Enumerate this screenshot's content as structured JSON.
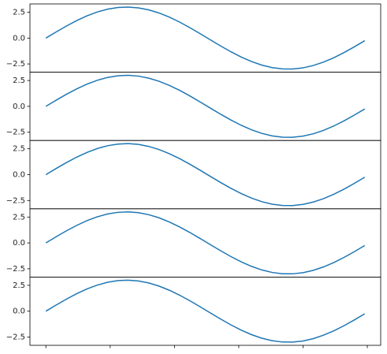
{
  "chart_data": [
    {
      "type": "line",
      "x": [
        0,
        0.2,
        0.4,
        0.6,
        0.8,
        1.0,
        1.2,
        1.4,
        1.6,
        1.8,
        2.0,
        2.2,
        2.4,
        2.6,
        2.8,
        3.0,
        3.2,
        3.4,
        3.6,
        3.8,
        4.0,
        4.2,
        4.4,
        4.6,
        4.8,
        5.0,
        5.2,
        5.4,
        5.6,
        5.8,
        6.0,
        6.2
      ],
      "values": [
        0,
        0.596,
        1.168,
        1.694,
        2.152,
        2.524,
        2.796,
        2.956,
        2.999,
        2.922,
        2.728,
        2.426,
        2.026,
        1.547,
        1.005,
        0.423,
        -0.175,
        -0.767,
        -1.328,
        -1.836,
        -2.27,
        -2.615,
        -2.855,
        -2.981,
        -2.988,
        -2.877,
        -2.65,
        -2.318,
        -1.894,
        -1.394,
        -0.838,
        -0.249
      ],
      "color": "#1f77b4",
      "xlim": [
        -0.31,
        6.51
      ],
      "ylim": [
        -3.3,
        3.3
      ],
      "yticks": [
        {
          "value": -2.5,
          "label": "−2.5"
        },
        {
          "value": 0,
          "label": "0.0"
        },
        2.5
      ]
    },
    {
      "type": "line",
      "x": [
        0,
        0.2,
        0.4,
        0.6,
        0.8,
        1.0,
        1.2,
        1.4,
        1.6,
        1.8,
        2.0,
        2.2,
        2.4,
        2.6,
        2.8,
        3.0,
        3.2,
        3.4,
        3.6,
        3.8,
        4.0,
        4.2,
        4.4,
        4.6,
        4.8,
        5.0,
        5.2,
        5.4,
        5.6,
        5.8,
        6.0,
        6.2
      ],
      "values": [
        0,
        0.596,
        1.168,
        1.694,
        2.152,
        2.524,
        2.796,
        2.956,
        2.999,
        2.922,
        2.728,
        2.426,
        2.026,
        1.547,
        1.005,
        0.423,
        -0.175,
        -0.767,
        -1.328,
        -1.836,
        -2.27,
        -2.615,
        -2.855,
        -2.981,
        -2.988,
        -2.877,
        -2.65,
        -2.318,
        -1.894,
        -1.394,
        -0.838,
        -0.249
      ],
      "color": "#1f77b4",
      "xlim": [
        -0.31,
        6.51
      ],
      "ylim": [
        -3.3,
        3.3
      ],
      "yticks": [
        {
          "value": -2.5,
          "label": "−2.5"
        },
        {
          "value": 0,
          "label": "0.0"
        },
        2.5
      ]
    },
    {
      "type": "line",
      "x": [
        0,
        0.2,
        0.4,
        0.6,
        0.8,
        1.0,
        1.2,
        1.4,
        1.6,
        1.8,
        2.0,
        2.2,
        2.4,
        2.6,
        2.8,
        3.0,
        3.2,
        3.4,
        3.6,
        3.8,
        4.0,
        4.2,
        4.4,
        4.6,
        4.8,
        5.0,
        5.2,
        5.4,
        5.6,
        5.8,
        6.0,
        6.2
      ],
      "values": [
        0,
        0.596,
        1.168,
        1.694,
        2.152,
        2.524,
        2.796,
        2.956,
        2.999,
        2.922,
        2.728,
        2.426,
        2.026,
        1.547,
        1.005,
        0.423,
        -0.175,
        -0.767,
        -1.328,
        -1.836,
        -2.27,
        -2.615,
        -2.855,
        -2.981,
        -2.988,
        -2.877,
        -2.65,
        -2.318,
        -1.894,
        -1.394,
        -0.838,
        -0.249
      ],
      "color": "#1f77b4",
      "xlim": [
        -0.31,
        6.51
      ],
      "ylim": [
        -3.3,
        3.3
      ],
      "yticks": [
        {
          "value": -2.5,
          "label": "−2.5"
        },
        {
          "value": 0,
          "label": "0.0"
        },
        2.5
      ]
    },
    {
      "type": "line",
      "x": [
        0,
        0.2,
        0.4,
        0.6,
        0.8,
        1.0,
        1.2,
        1.4,
        1.6,
        1.8,
        2.0,
        2.2,
        2.4,
        2.6,
        2.8,
        3.0,
        3.2,
        3.4,
        3.6,
        3.8,
        4.0,
        4.2,
        4.4,
        4.6,
        4.8,
        5.0,
        5.2,
        5.4,
        5.6,
        5.8,
        6.0,
        6.2
      ],
      "values": [
        0,
        0.596,
        1.168,
        1.694,
        2.152,
        2.524,
        2.796,
        2.956,
        2.999,
        2.922,
        2.728,
        2.426,
        2.026,
        1.547,
        1.005,
        0.423,
        -0.175,
        -0.767,
        -1.328,
        -1.836,
        -2.27,
        -2.615,
        -2.855,
        -2.981,
        -2.988,
        -2.877,
        -2.65,
        -2.318,
        -1.894,
        -1.394,
        -0.838,
        -0.249
      ],
      "color": "#1f77b4",
      "xlim": [
        -0.31,
        6.51
      ],
      "ylim": [
        -3.3,
        3.3
      ],
      "yticks": [
        {
          "value": -2.5,
          "label": "−2.5"
        },
        {
          "value": 0,
          "label": "0.0"
        },
        2.5
      ]
    },
    {
      "type": "line",
      "x": [
        0,
        0.2,
        0.4,
        0.6,
        0.8,
        1.0,
        1.2,
        1.4,
        1.6,
        1.8,
        2.0,
        2.2,
        2.4,
        2.6,
        2.8,
        3.0,
        3.2,
        3.4,
        3.6,
        3.8,
        4.0,
        4.2,
        4.4,
        4.6,
        4.8,
        5.0,
        5.2,
        5.4,
        5.6,
        5.8,
        6.0,
        6.2
      ],
      "values": [
        0,
        0.596,
        1.168,
        1.694,
        2.152,
        2.524,
        2.796,
        2.956,
        2.999,
        2.922,
        2.728,
        2.426,
        2.026,
        1.547,
        1.005,
        0.423,
        -0.175,
        -0.767,
        -1.328,
        -1.836,
        -2.27,
        -2.615,
        -2.855,
        -2.981,
        -2.988,
        -2.877,
        -2.65,
        -2.318,
        -1.894,
        -1.394,
        -0.838,
        -0.249
      ],
      "color": "#1f77b4",
      "xlim": [
        -0.31,
        6.51
      ],
      "ylim": [
        -3.3,
        3.3
      ],
      "yticks": [
        {
          "value": -2.5,
          "label": "−2.5"
        },
        {
          "value": 0,
          "label": "0.0"
        },
        2.5
      ],
      "xticks": [
        0,
        1.25,
        2.5,
        3.75,
        5,
        6.25
      ]
    }
  ]
}
